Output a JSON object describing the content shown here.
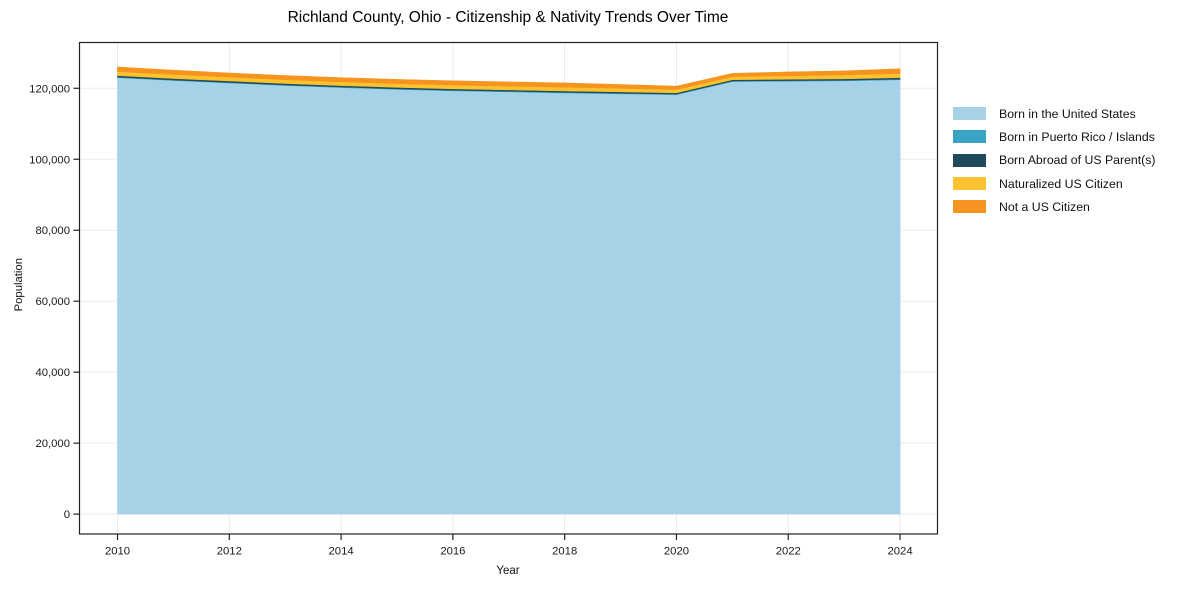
{
  "chart_data": {
    "type": "area",
    "stacked": true,
    "title": "Richland County, Ohio - Citizenship & Nativity Trends Over Time",
    "xlabel": "Year",
    "ylabel": "Population",
    "x": [
      2010,
      2011,
      2012,
      2013,
      2014,
      2015,
      2016,
      2017,
      2018,
      2019,
      2020,
      2021,
      2022,
      2023,
      2024
    ],
    "series": [
      {
        "name": "Born in the United States",
        "color": "#a6d2e7",
        "values": [
          123000,
          122200,
          121500,
          120800,
          120200,
          119700,
          119300,
          119000,
          118700,
          118450,
          118200,
          121900,
          122000,
          122100,
          122400
        ]
      },
      {
        "name": "Born in Puerto Rico / Islands",
        "color": "#3aa5c2",
        "values": [
          150,
          150,
          150,
          150,
          160,
          160,
          160,
          160,
          170,
          170,
          160,
          160,
          170,
          170,
          170
        ]
      },
      {
        "name": "Born Abroad of US Parent(s)",
        "color": "#1f4a5c",
        "values": [
          430,
          420,
          420,
          410,
          410,
          400,
          400,
          390,
          390,
          380,
          360,
          370,
          390,
          410,
          440
        ]
      },
      {
        "name": "Naturalized US Citizen",
        "color": "#fcc22f",
        "values": [
          1140,
          1110,
          1070,
          1070,
          1060,
          1060,
          1050,
          1050,
          1040,
          980,
          900,
          870,
          960,
          1050,
          1150
        ]
      },
      {
        "name": "Not a US Citizen",
        "color": "#f7941f",
        "values": [
          1280,
          1220,
          1160,
          1170,
          1170,
          1180,
          1190,
          1200,
          1200,
          1070,
          980,
          900,
          1080,
          1170,
          1340
        ]
      }
    ],
    "x_ticks": [
      2010,
      2012,
      2014,
      2016,
      2018,
      2020,
      2022,
      2024
    ],
    "x_tick_labels": [
      "2010",
      "2012",
      "2014",
      "2016",
      "2018",
      "2020",
      "2022",
      "2024"
    ],
    "y_ticks": [
      0,
      20000,
      40000,
      60000,
      80000,
      100000,
      120000
    ],
    "y_tick_labels": [
      "0",
      "20,000",
      "40,000",
      "60,000",
      "80,000",
      "100,000",
      "120,000"
    ],
    "xlim": [
      2009.32,
      2024.67
    ],
    "ylim": [
      -5600,
      132900
    ],
    "grid": true,
    "legend_position": "right-outside",
    "colors": {
      "grid": "#ebebeb",
      "axis": "#222222",
      "tick_text": "#1a1a1a",
      "background": "#ffffff"
    }
  }
}
